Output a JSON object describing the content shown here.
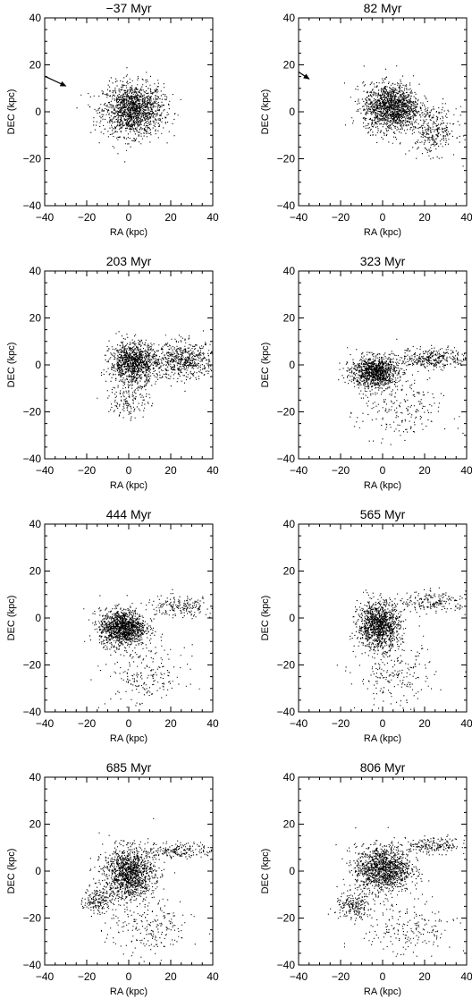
{
  "figure": {
    "grid": false,
    "colors": {
      "axis": "#000000",
      "points": "#000000",
      "background": "#ffffff"
    }
  },
  "chart_data": [
    {
      "type": "scatter",
      "title": "−37 Myr",
      "xlabel": "RA (kpc)",
      "ylabel": "DEC (kpc)",
      "xlim": [
        -40,
        40
      ],
      "ylim": [
        -40,
        40
      ],
      "xticks": [
        -40,
        -20,
        0,
        20,
        40
      ],
      "yticks": [
        -40,
        -20,
        0,
        20,
        40
      ],
      "grid": false,
      "arrow": {
        "from": [
          -42,
          16
        ],
        "to": [
          -30,
          11
        ]
      },
      "components": [
        {
          "cx": 2,
          "cy": 1,
          "rx": 13,
          "ry": 10,
          "n": 1500
        }
      ]
    },
    {
      "type": "scatter",
      "title": "82 Myr",
      "xlabel": "RA (kpc)",
      "ylabel": "DEC (kpc)",
      "xlim": [
        -40,
        40
      ],
      "ylim": [
        -40,
        40
      ],
      "xticks": [
        -40,
        -20,
        0,
        20,
        40
      ],
      "yticks": [
        -40,
        -20,
        0,
        20,
        40
      ],
      "grid": false,
      "arrow": {
        "from": [
          -40,
          17
        ],
        "to": [
          -35,
          14
        ]
      },
      "components": [
        {
          "cx": 4,
          "cy": 2,
          "rx": 12,
          "ry": 9,
          "n": 1500
        },
        {
          "cx": 24,
          "cy": -8,
          "rx": 10,
          "ry": 9,
          "n": 300
        }
      ]
    },
    {
      "type": "scatter",
      "title": "203 Myr",
      "xlabel": "RA (kpc)",
      "ylabel": "DEC (kpc)",
      "xlim": [
        -40,
        40
      ],
      "ylim": [
        -40,
        40
      ],
      "xticks": [
        -40,
        -20,
        0,
        20,
        40
      ],
      "yticks": [
        -40,
        -20,
        0,
        20,
        40
      ],
      "grid": false,
      "components": [
        {
          "cx": 2,
          "cy": 1,
          "rx": 10,
          "ry": 8,
          "n": 1100
        },
        {
          "cx": 26,
          "cy": 2,
          "rx": 14,
          "ry": 7,
          "n": 600
        },
        {
          "cx": 0,
          "cy": -15,
          "rx": 9,
          "ry": 7,
          "n": 140
        }
      ]
    },
    {
      "type": "scatter",
      "title": "323 Myr",
      "xlabel": "RA (kpc)",
      "ylabel": "DEC (kpc)",
      "xlim": [
        -40,
        40
      ],
      "ylim": [
        -40,
        40
      ],
      "xticks": [
        -40,
        -20,
        0,
        20,
        40
      ],
      "yticks": [
        -40,
        -20,
        0,
        20,
        40
      ],
      "grid": false,
      "components": [
        {
          "cx": -4,
          "cy": -3,
          "rx": 10,
          "ry": 6,
          "n": 1100
        },
        {
          "cx": 24,
          "cy": 3,
          "rx": 15,
          "ry": 4,
          "n": 350
        },
        {
          "cx": 8,
          "cy": -20,
          "rx": 18,
          "ry": 12,
          "n": 200
        }
      ]
    },
    {
      "type": "scatter",
      "title": "444 Myr",
      "xlabel": "RA (kpc)",
      "ylabel": "DEC (kpc)",
      "xlim": [
        -40,
        40
      ],
      "ylim": [
        -40,
        40
      ],
      "xticks": [
        -40,
        -20,
        0,
        20,
        40
      ],
      "yticks": [
        -40,
        -20,
        0,
        20,
        40
      ],
      "grid": false,
      "components": [
        {
          "cx": -3,
          "cy": -4,
          "rx": 10,
          "ry": 7,
          "n": 1300
        },
        {
          "cx": 24,
          "cy": 5,
          "rx": 15,
          "ry": 4,
          "n": 200
        },
        {
          "cx": 8,
          "cy": -25,
          "rx": 17,
          "ry": 12,
          "n": 200
        }
      ]
    },
    {
      "type": "scatter",
      "title": "565 Myr",
      "xlabel": "RA (kpc)",
      "ylabel": "DEC (kpc)",
      "xlim": [
        -40,
        40
      ],
      "ylim": [
        -40,
        40
      ],
      "xticks": [
        -40,
        -20,
        0,
        20,
        40
      ],
      "yticks": [
        -40,
        -20,
        0,
        20,
        40
      ],
      "grid": false,
      "components": [
        {
          "cx": -2,
          "cy": -3,
          "rx": 9,
          "ry": 9,
          "n": 1200
        },
        {
          "cx": 24,
          "cy": 7,
          "rx": 15,
          "ry": 4,
          "n": 200
        },
        {
          "cx": 6,
          "cy": -25,
          "rx": 17,
          "ry": 12,
          "n": 200
        }
      ]
    },
    {
      "type": "scatter",
      "title": "685 Myr",
      "xlabel": "RA (kpc)",
      "ylabel": "DEC (kpc)",
      "xlim": [
        -40,
        40
      ],
      "ylim": [
        -40,
        40
      ],
      "xticks": [
        -40,
        -20,
        0,
        20,
        40
      ],
      "yticks": [
        -40,
        -20,
        0,
        20,
        40
      ],
      "grid": false,
      "components": [
        {
          "cx": 0,
          "cy": -1,
          "rx": 11,
          "ry": 10,
          "n": 1300
        },
        {
          "cx": -15,
          "cy": -12,
          "rx": 6,
          "ry": 5,
          "n": 180
        },
        {
          "cx": 24,
          "cy": 9,
          "rx": 15,
          "ry": 3,
          "n": 200
        },
        {
          "cx": 10,
          "cy": -25,
          "rx": 18,
          "ry": 10,
          "n": 200
        }
      ]
    },
    {
      "type": "scatter",
      "title": "806 Myr",
      "xlabel": "RA (kpc)",
      "ylabel": "DEC (kpc)",
      "xlim": [
        -40,
        40
      ],
      "ylim": [
        -40,
        40
      ],
      "xticks": [
        -40,
        -20,
        0,
        20,
        40
      ],
      "yticks": [
        -40,
        -20,
        0,
        20,
        40
      ],
      "grid": false,
      "components": [
        {
          "cx": 0,
          "cy": 1,
          "rx": 12,
          "ry": 9,
          "n": 1300
        },
        {
          "cx": -14,
          "cy": -15,
          "rx": 8,
          "ry": 5,
          "n": 200
        },
        {
          "cx": 24,
          "cy": 11,
          "rx": 15,
          "ry": 3,
          "n": 200
        },
        {
          "cx": 12,
          "cy": -25,
          "rx": 20,
          "ry": 11,
          "n": 200
        }
      ]
    }
  ]
}
